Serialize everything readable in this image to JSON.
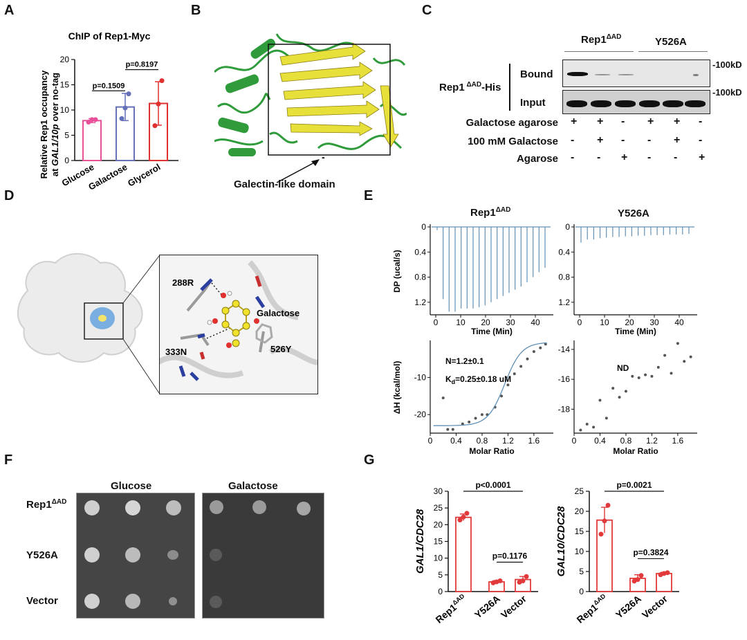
{
  "colors": {
    "pink": "#e8509a",
    "blue": "#6470b8",
    "red": "#e03030",
    "itc": "#5f8fb4",
    "barred": "#e23a3a",
    "protein_green": "#2f9b3a",
    "strand_yellow": "#e8e03a"
  },
  "panels": {
    "A": "A",
    "B": "B",
    "C": "C",
    "D": "D",
    "E": "E",
    "F": "F",
    "G": "G"
  },
  "panelA": {
    "chart_data": {
      "type": "bar",
      "title": "ChIP of Rep1-Myc",
      "ylabel_line1": "Relative Rep1 occupancy",
      "ylabel_line2_pre": "at ",
      "ylabel_line2_italic": "GAL1/10p",
      "ylabel_line2_post": " over no-tag",
      "categories": [
        "Glucose",
        "Galactose",
        "Glycerol"
      ],
      "values": [
        7.9,
        10.6,
        11.3
      ],
      "errors": [
        0.4,
        2.7,
        4.3
      ],
      "points": [
        [
          7.6,
          8.1,
          8.1
        ],
        [
          8.3,
          10.4,
          13.2
        ],
        [
          6.9,
          11.2,
          15.8
        ]
      ],
      "ylim": [
        0,
        20
      ],
      "yticks": [
        "0",
        "5",
        "10",
        "15",
        "20"
      ],
      "pvalues": [
        "p=0.1509",
        "p=0.8197"
      ]
    }
  },
  "panelB": {
    "annotation": "Galectin-like domain",
    "minus": "-"
  },
  "panelC": {
    "groups": [
      "Rep1",
      "Y526A"
    ],
    "group_sup": "ΔAD",
    "protein_label": "Rep1",
    "protein_sup": " ΔAD",
    "protein_suffix": "-His",
    "rows": [
      "Bound",
      "Input"
    ],
    "mw": [
      "-100kD",
      "-100kD"
    ],
    "conditions": [
      {
        "label": "Galactose agarose",
        "signs": [
          "+",
          "+",
          "-",
          "+",
          "+",
          "-"
        ]
      },
      {
        "label": "100 mM Galactose",
        "signs": [
          "-",
          "+",
          "-",
          "-",
          "+",
          "-"
        ]
      },
      {
        "label": "Agarose",
        "signs": [
          "-",
          "-",
          "+",
          "-",
          "-",
          "+"
        ]
      }
    ]
  },
  "panelD": {
    "residues": [
      "288R",
      "333N",
      "526Y"
    ],
    "ligand": "Galactose"
  },
  "panelE": {
    "titles": [
      "Rep1",
      "Y526A"
    ],
    "title_sup": "ΔAD",
    "dp_ylabel": "DP (ucal/s)",
    "dp_yticks": [
      "0",
      "0.4",
      "0.8",
      "1.2"
    ],
    "time_xlabel": "Time (Min)",
    "time_xticks": [
      "0",
      "10",
      "20",
      "30",
      "40"
    ],
    "dh_ylabel": "ΔH (kcal/mol)",
    "dh_yticks_left": [
      "-10",
      "-20"
    ],
    "dh_yticks_right": [
      "-14",
      "-16",
      "-18"
    ],
    "molar_xlabel": "Molar Ratio",
    "molar_xticks": [
      "0",
      "0.4",
      "0.8",
      "1.2",
      "1.6"
    ],
    "n_text": "N=1.2±0.1",
    "kd_text_pre": "K",
    "kd_text_sub": "d",
    "kd_text_post": "=0.25±0.18 uM",
    "nd_text": "ND",
    "chart_data": [
      {
        "type": "line",
        "series": "Rep1ΔAD DP injections",
        "x_unit": "min",
        "peak_heights": [
          0.05,
          1.15,
          1.35,
          1.35,
          1.3,
          1.3,
          1.3,
          1.28,
          1.25,
          1.2,
          1.15,
          1.1,
          1.05,
          1.0,
          0.95,
          0.88,
          0.8,
          0.72,
          0.65
        ],
        "ylim": [
          0,
          1.4
        ]
      },
      {
        "type": "scatter",
        "series": "Rep1ΔAD ΔH",
        "x": [
          0.2,
          0.27,
          0.35,
          0.5,
          0.6,
          0.7,
          0.8,
          0.88,
          1.0,
          1.1,
          1.2,
          1.3,
          1.4,
          1.5,
          1.6,
          1.7,
          1.78
        ],
        "y": [
          -15.5,
          -24,
          -24,
          -22.5,
          -22,
          -21,
          -20,
          -20,
          -18,
          -15,
          -12,
          -9,
          -7,
          -5,
          -3,
          -2,
          -1
        ],
        "xlim": [
          0,
          1.9
        ],
        "ylim": [
          -25,
          0
        ]
      },
      {
        "type": "line",
        "series": "Y526A DP injections",
        "peak_heights": [
          0.25,
          0.2,
          0.2,
          0.18,
          0.17,
          0.16,
          0.16,
          0.15,
          0.15,
          0.14,
          0.14,
          0.13,
          0.13,
          0.13,
          0.12,
          0.12,
          0.12,
          0.11
        ],
        "ylim": [
          0,
          1.4
        ]
      },
      {
        "type": "scatter",
        "series": "Y526A ΔH",
        "x": [
          0.1,
          0.2,
          0.3,
          0.4,
          0.5,
          0.6,
          0.7,
          0.8,
          0.9,
          1.0,
          1.1,
          1.2,
          1.3,
          1.4,
          1.5,
          1.6,
          1.7,
          1.8
        ],
        "y": [
          -19.4,
          -19,
          -19.2,
          -17.4,
          -18.6,
          -16.6,
          -17.2,
          -16.8,
          -15.8,
          -15.9,
          -15.7,
          -15.8,
          -15.2,
          -14.4,
          -15.6,
          -13.6,
          -14.8,
          -14.5
        ],
        "xlim": [
          0,
          1.9
        ],
        "ylim": [
          -19.6,
          -13.4
        ]
      }
    ]
  },
  "panelF": {
    "media": [
      "Glucose",
      "Galactose"
    ],
    "strains": [
      "Rep1",
      "Y526A",
      "Vector"
    ],
    "strain_sup": "ΔAD"
  },
  "panelG": {
    "chart_data": [
      {
        "type": "bar",
        "ylabel": "GAL1/CDC28",
        "categories": [
          "Rep1",
          "Y526A",
          "Vector"
        ],
        "cat_sup": "ΔAD",
        "values": [
          22.2,
          2.9,
          3.6
        ],
        "errors": [
          1.0,
          0.4,
          0.9
        ],
        "points": [
          [
            21.4,
            22.3,
            23.4
          ],
          [
            2.6,
            2.9,
            3.2
          ],
          [
            2.8,
            3.2,
            4.5
          ]
        ],
        "ylim": [
          0,
          30
        ],
        "yticks": [
          "0",
          "5",
          "10",
          "15",
          "20",
          "25",
          "30"
        ],
        "pvalues": [
          "p<0.0001",
          "p=0.1176"
        ]
      },
      {
        "type": "bar",
        "ylabel": "GAL10/CDC28",
        "categories": [
          "Rep1",
          "Y526A",
          "Vector"
        ],
        "cat_sup": "ΔAD",
        "values": [
          17.8,
          3.3,
          4.5
        ],
        "errors": [
          3.2,
          0.9,
          0.3
        ],
        "points": [
          [
            14.3,
            17.6,
            21.5
          ],
          [
            2.6,
            3.0,
            4.0
          ],
          [
            4.2,
            4.5,
            4.7
          ]
        ],
        "ylim": [
          0,
          25
        ],
        "yticks": [
          "0",
          "5",
          "10",
          "15",
          "20",
          "25"
        ],
        "pvalues": [
          "p=0.0021",
          "p=0.3824"
        ]
      }
    ]
  }
}
